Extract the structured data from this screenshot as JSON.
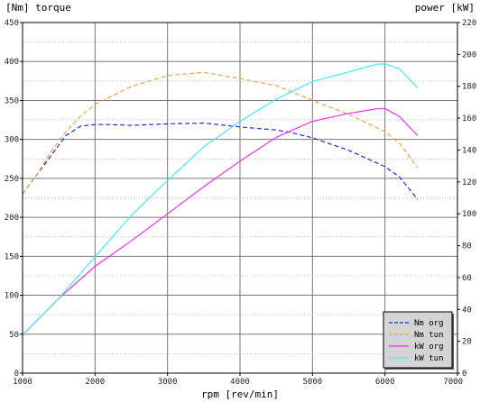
{
  "chart_data": {
    "type": "line",
    "left_axis_title": "[Nm] torque",
    "right_axis_title": "power [kW]",
    "xlabel": "rpm [rev/min]",
    "xlim": [
      1000,
      7000
    ],
    "ylim_left": [
      0,
      450
    ],
    "ylim_right": [
      0,
      220
    ],
    "x_ticks": [
      1000,
      2000,
      3000,
      4000,
      5000,
      6000,
      7000
    ],
    "y_left_ticks": [
      0,
      50,
      100,
      150,
      200,
      250,
      300,
      350,
      400,
      450
    ],
    "y_right_ticks": [
      0,
      20,
      40,
      60,
      80,
      100,
      120,
      140,
      160,
      180,
      200,
      220
    ],
    "grid": true,
    "legend_position": "bottom-right",
    "series": [
      {
        "name": "Nm org",
        "axis": "left",
        "color": "#2a2acc",
        "dash": "dashed",
        "x": [
          1000,
          1200,
          1400,
          1600,
          1800,
          2000,
          2200,
          2500,
          3000,
          3500,
          4000,
          4500,
          4700,
          5000,
          5500,
          6000,
          6200,
          6450
        ],
        "y": [
          230,
          255,
          280,
          305,
          317,
          319,
          319,
          318,
          320,
          321,
          316,
          312,
          309,
          302,
          286,
          265,
          252,
          223
        ]
      },
      {
        "name": "Nm tun",
        "axis": "left",
        "color": "#f0a040",
        "dash": "dashed",
        "x": [
          1000,
          1200,
          1400,
          1600,
          1800,
          2000,
          2500,
          3000,
          3500,
          4000,
          4500,
          5000,
          5500,
          6000,
          6200,
          6450
        ],
        "y": [
          230,
          255,
          285,
          310,
          330,
          345,
          368,
          382,
          386,
          378,
          369,
          350,
          332,
          310,
          295,
          264
        ]
      },
      {
        "name": "kW org",
        "axis": "right",
        "color": "#ee33ee",
        "dash": "solid",
        "x": [
          1000,
          1500,
          2000,
          2500,
          3000,
          3500,
          4000,
          4500,
          5000,
          5500,
          5900,
          6000,
          6200,
          6450
        ],
        "y": [
          24,
          47,
          67,
          83,
          100,
          117,
          133,
          148,
          158,
          163,
          166,
          166,
          161,
          149
        ]
      },
      {
        "name": "kW tun",
        "axis": "right",
        "color": "#44eeee",
        "dash": "solid",
        "x": [
          1000,
          1500,
          2000,
          2500,
          3000,
          3500,
          4000,
          4500,
          5000,
          5500,
          5900,
          6000,
          6200,
          6450
        ],
        "y": [
          24,
          47,
          73,
          99,
          121,
          142,
          158,
          172,
          183,
          189,
          194,
          194,
          191,
          179
        ]
      }
    ]
  }
}
